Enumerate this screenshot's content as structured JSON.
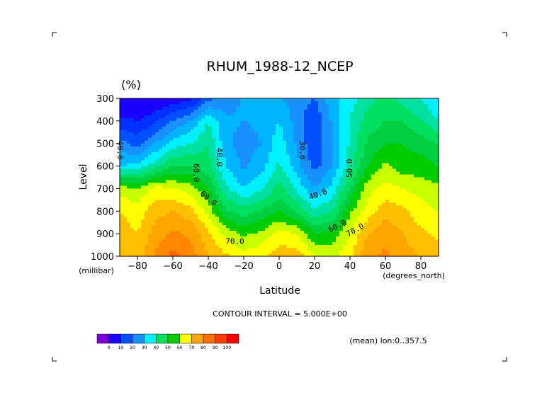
{
  "chart_data": {
    "type": "heatmap",
    "title": "RHUM_1988-12_NCEP",
    "units": "(%)",
    "xlabel": "Latitude",
    "x_units": "(degrees_north)",
    "ylabel": "Level",
    "y_units": "(millibar)",
    "xlim": [
      -90,
      90
    ],
    "ylim": [
      1000,
      300
    ],
    "x_ticks": [
      -80,
      -60,
      -40,
      -20,
      0,
      20,
      40,
      60,
      80
    ],
    "x_tick_labels": [
      "−80",
      "−60",
      "−40",
      "−20",
      "0",
      "20",
      "40",
      "60",
      "80"
    ],
    "y_ticks": [
      300,
      400,
      500,
      600,
      700,
      800,
      900,
      1000
    ],
    "y_tick_labels": [
      "300",
      "400",
      "500",
      "600",
      "700",
      "800",
      "900",
      "1000"
    ],
    "contour_interval_text": "CONTOUR INTERVAL = 5.000E+00",
    "mean_text": "(mean) lon:0..357.5",
    "latitudes": [
      -90,
      -80,
      -70,
      -60,
      -50,
      -40,
      -30,
      -20,
      -10,
      0,
      10,
      20,
      30,
      40,
      50,
      60,
      70,
      80,
      90
    ],
    "levels": [
      300,
      400,
      500,
      600,
      700,
      800,
      900,
      1000
    ],
    "values": [
      [
        12,
        12,
        14,
        17,
        18,
        28,
        32,
        36,
        38,
        36,
        32,
        30,
        38,
        42,
        48,
        52,
        48,
        45,
        40
      ],
      [
        22,
        20,
        24,
        30,
        35,
        45,
        36,
        35,
        36,
        40,
        33,
        25,
        36,
        46,
        52,
        55,
        55,
        50,
        45
      ],
      [
        32,
        28,
        35,
        42,
        45,
        50,
        36,
        33,
        35,
        43,
        34,
        26,
        34,
        46,
        56,
        60,
        60,
        58,
        55
      ],
      [
        40,
        42,
        48,
        55,
        55,
        52,
        40,
        34,
        38,
        46,
        37,
        28,
        35,
        48,
        60,
        66,
        62,
        62,
        60
      ],
      [
        68,
        65,
        72,
        70,
        68,
        60,
        46,
        40,
        44,
        52,
        44,
        35,
        42,
        55,
        68,
        72,
        70,
        68,
        66
      ],
      [
        75,
        72,
        78,
        80,
        77,
        68,
        56,
        52,
        56,
        60,
        54,
        46,
        50,
        64,
        72,
        78,
        76,
        72,
        70
      ],
      [
        78,
        75,
        82,
        86,
        84,
        76,
        68,
        64,
        66,
        72,
        70,
        60,
        62,
        70,
        80,
        84,
        80,
        76,
        74
      ],
      [
        80,
        77,
        86,
        92,
        88,
        80,
        76,
        72,
        74,
        78,
        78,
        70,
        68,
        74,
        84,
        86,
        82,
        80,
        78
      ]
    ],
    "contour_labels": [
      {
        "text": "40.0",
        "lat": -90,
        "level": 530,
        "rotate": 90
      },
      {
        "text": "60.0",
        "lat": -47,
        "level": 630,
        "rotate": 90
      },
      {
        "text": "60.0",
        "lat": -40,
        "level": 745,
        "rotate": 40
      },
      {
        "text": "40.0",
        "lat": -34,
        "level": 560,
        "rotate": 90
      },
      {
        "text": "70.0",
        "lat": -25,
        "level": 935,
        "rotate": 0
      },
      {
        "text": "30.0",
        "lat": 13,
        "level": 530,
        "rotate": 90
      },
      {
        "text": "40.0",
        "lat": 22,
        "level": 727,
        "rotate": -20
      },
      {
        "text": "50.0",
        "lat": 40,
        "level": 610,
        "rotate": -90
      },
      {
        "text": "60.0",
        "lat": 33,
        "level": 868,
        "rotate": -25
      },
      {
        "text": "70.0",
        "lat": 43,
        "level": 885,
        "rotate": -30
      }
    ],
    "colorbar": {
      "labels": [
        "0",
        "10",
        "20",
        "30",
        "40",
        "50",
        "60",
        "70",
        "80",
        "90",
        "100"
      ],
      "colors": [
        "#7b00d8",
        "#1a00ff",
        "#0050ff",
        "#1890ff",
        "#00f0ff",
        "#00e060",
        "#00cc00",
        "#ffff00",
        "#ffa500",
        "#ff7000",
        "#ff3a00",
        "#ff0000"
      ]
    },
    "fill_levels": [
      0,
      10,
      20,
      25,
      30,
      35,
      40,
      45,
      50,
      55,
      60,
      65,
      70,
      75,
      80,
      85,
      90,
      95
    ],
    "fill_colors": [
      "#7b00d8",
      "#1a00ff",
      "#0030ff",
      "#0050ff",
      "#1890ff",
      "#00b4ff",
      "#00f0ff",
      "#00e0a0",
      "#00e060",
      "#00d040",
      "#00cc00",
      "#c8ff00",
      "#ffff00",
      "#ffc000",
      "#ffa500",
      "#ff8800",
      "#ff6000",
      "#ff0000"
    ]
  }
}
